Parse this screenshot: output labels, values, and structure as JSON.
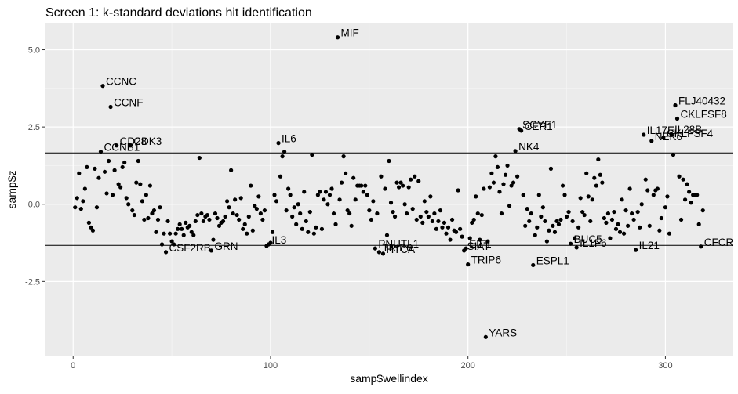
{
  "chart_data": {
    "type": "scatter",
    "title": "Screen 1: k-standard deviations hit identification",
    "xlabel": "samp$wellindex",
    "ylabel": "samp$z",
    "xlim": [
      -14,
      334
    ],
    "ylim": [
      -4.9,
      5.85
    ],
    "x_ticks": [
      0,
      100,
      200,
      300
    ],
    "y_ticks": [
      -2.5,
      0,
      2.5,
      5
    ],
    "x_tick_labels": [
      "0",
      "100",
      "200",
      "300"
    ],
    "y_tick_labels": [
      "-2.5",
      "0.0",
      "2.5",
      "5.0"
    ],
    "hlines": [
      1.66,
      -1.33
    ],
    "grid": true,
    "panel_background": "#EBEBEB",
    "grid_color": "#FFFFFF",
    "point_color": "#000000",
    "labeled_points": [
      {
        "label": "MIF",
        "x": 134,
        "y": 5.4
      },
      {
        "label": "CCNC",
        "x": 15,
        "y": 3.83
      },
      {
        "label": "CCNF",
        "x": 19,
        "y": 3.15
      },
      {
        "label": "CD28",
        "x": 22,
        "y": 1.9
      },
      {
        "label": "CDK3",
        "x": 29,
        "y": 1.9
      },
      {
        "label": "CCNB1",
        "x": 14,
        "y": 1.7
      },
      {
        "label": "IL6",
        "x": 104,
        "y": 1.98
      },
      {
        "label": "SCYE1",
        "x": 226,
        "y": 2.43
      },
      {
        "label": "CER1",
        "x": 227,
        "y": 2.38
      },
      {
        "label": "NK4",
        "x": 224,
        "y": 1.72
      },
      {
        "label": "FLJ40432",
        "x": 305,
        "y": 3.2
      },
      {
        "label": "CKLFSF8",
        "x": 306,
        "y": 2.77
      },
      {
        "label": "IL17E",
        "x": 289,
        "y": 2.25
      },
      {
        "label": "IL28B",
        "x": 303,
        "y": 2.27
      },
      {
        "label": "CKLFSF4",
        "x": 299,
        "y": 2.15
      },
      {
        "label": "NEK6",
        "x": 293,
        "y": 2.05
      },
      {
        "label": "CSF2RB",
        "x": 47,
        "y": -1.55
      },
      {
        "label": "GRN",
        "x": 70,
        "y": -1.5
      },
      {
        "label": "IL3",
        "x": 99,
        "y": -1.3
      },
      {
        "label": "PNUTL1",
        "x": 153,
        "y": -1.43
      },
      {
        "label": "TRIP6_1",
        "x": 155,
        "y": -1.55
      },
      {
        "label": "HTCA",
        "x": 157,
        "y": -1.6
      },
      {
        "label": "EIF1",
        "x": 199,
        "y": -1.43
      },
      {
        "label": "SIAT",
        "x": 198,
        "y": -1.5
      },
      {
        "label": "TRIP6",
        "x": 200,
        "y": -1.95
      },
      {
        "label": "ESPL1",
        "x": 233,
        "y": -1.97
      },
      {
        "label": "BUC5",
        "x": 252,
        "y": -1.28
      },
      {
        "label": "IL1F6",
        "x": 255,
        "y": -1.4
      },
      {
        "label": "IL21",
        "x": 285,
        "y": -1.48
      },
      {
        "label": "CFCR",
        "x": 318,
        "y": -1.37
      },
      {
        "label": "YARS",
        "x": 209,
        "y": -4.3
      }
    ],
    "point_labels": {
      "MIF": "MIF",
      "CCNC": "CCNC",
      "CCNF": "CCNF",
      "CD28": "CD28",
      "CDK3": "CDK3",
      "CCNB1": "CCNB1",
      "IL6": "IL6",
      "SCYE1": "SCYE1",
      "CER1": "CER1",
      "NK4": "NK4",
      "FLJ40432": "FLJ40432",
      "CKLFSF8": "CKLFSF8",
      "IL17E": "IL17E",
      "IL28B": "IL28B",
      "CKLFSF4": "CKLFSF4",
      "NEK6": "NEK6",
      "CSF2RB": "CSF2RB",
      "GRN": "GRN",
      "IL3": "IL3",
      "PNUTL1": "PNUTL1",
      "TRIP6_1": "TRIP6",
      "HTCA": "HTCA",
      "EIF1": "EIF1",
      "SIAT": "SIAT",
      "TRIP6": "TRIP6",
      "ESPL1": "ESPL1",
      "BUC5": "BUC5",
      "IL1F6": "IL1F6",
      "IL21": "IL21",
      "CFCR": "CFCR",
      "YARS": "YARS"
    },
    "points": [
      [
        1,
        -0.1
      ],
      [
        2,
        0.2
      ],
      [
        3,
        1.0
      ],
      [
        4,
        -0.15
      ],
      [
        5,
        0.1
      ],
      [
        6,
        0.5
      ],
      [
        7,
        1.2
      ],
      [
        8,
        -0.6
      ],
      [
        9,
        -0.75
      ],
      [
        10,
        -0.85
      ],
      [
        11,
        1.15
      ],
      [
        12,
        -0.1
      ],
      [
        13,
        0.85
      ],
      [
        16,
        1.05
      ],
      [
        17,
        0.35
      ],
      [
        18,
        1.4
      ],
      [
        20,
        0.3
      ],
      [
        21,
        1.1
      ],
      [
        23,
        0.65
      ],
      [
        24,
        0.55
      ],
      [
        25,
        1.2
      ],
      [
        26,
        1.35
      ],
      [
        27,
        0.2
      ],
      [
        28,
        0.0
      ],
      [
        30,
        -0.2
      ],
      [
        31,
        -0.35
      ],
      [
        32,
        0.7
      ],
      [
        33,
        1.4
      ],
      [
        34,
        0.65
      ],
      [
        35,
        0.1
      ],
      [
        36,
        -0.5
      ],
      [
        37,
        0.3
      ],
      [
        38,
        -0.45
      ],
      [
        39,
        0.6
      ],
      [
        40,
        -0.3
      ],
      [
        41,
        -0.2
      ],
      [
        42,
        -0.9
      ],
      [
        43,
        -0.5
      ],
      [
        44,
        -0.1
      ],
      [
        45,
        -1.3
      ],
      [
        46,
        -0.95
      ],
      [
        48,
        -0.55
      ],
      [
        49,
        -0.95
      ],
      [
        50,
        -1.2
      ],
      [
        51,
        -1.3
      ],
      [
        52,
        -0.95
      ],
      [
        53,
        -0.8
      ],
      [
        54,
        -0.65
      ],
      [
        55,
        -0.8
      ],
      [
        56,
        -1.0
      ],
      [
        57,
        -0.6
      ],
      [
        58,
        -0.75
      ],
      [
        59,
        -0.7
      ],
      [
        60,
        -0.9
      ],
      [
        61,
        -1.0
      ],
      [
        62,
        -0.55
      ],
      [
        63,
        -0.35
      ],
      [
        64,
        1.5
      ],
      [
        65,
        -0.3
      ],
      [
        66,
        -0.55
      ],
      [
        67,
        -0.4
      ],
      [
        68,
        -0.35
      ],
      [
        69,
        -0.5
      ],
      [
        71,
        -1.15
      ],
      [
        72,
        -0.3
      ],
      [
        73,
        -0.45
      ],
      [
        74,
        -0.7
      ],
      [
        75,
        -0.6
      ],
      [
        76,
        -0.55
      ],
      [
        77,
        -0.4
      ],
      [
        78,
        0.1
      ],
      [
        79,
        -0.1
      ],
      [
        80,
        1.1
      ],
      [
        81,
        -0.3
      ],
      [
        82,
        0.15
      ],
      [
        83,
        -0.35
      ],
      [
        84,
        -0.5
      ],
      [
        85,
        0.2
      ],
      [
        86,
        -0.8
      ],
      [
        87,
        -0.65
      ],
      [
        88,
        -0.95
      ],
      [
        89,
        -0.4
      ],
      [
        90,
        0.6
      ],
      [
        91,
        -0.85
      ],
      [
        92,
        -0.05
      ],
      [
        93,
        -0.15
      ],
      [
        94,
        0.25
      ],
      [
        95,
        -0.3
      ],
      [
        96,
        -0.5
      ],
      [
        97,
        -0.2
      ],
      [
        98,
        -1.35
      ],
      [
        100,
        -1.25
      ],
      [
        101,
        -0.9
      ],
      [
        102,
        0.3
      ],
      [
        103,
        0.1
      ],
      [
        105,
        0.9
      ],
      [
        106,
        1.55
      ],
      [
        107,
        1.7
      ],
      [
        108,
        -0.2
      ],
      [
        109,
        0.5
      ],
      [
        110,
        0.3
      ],
      [
        111,
        -0.4
      ],
      [
        112,
        -0.1
      ],
      [
        113,
        -0.65
      ],
      [
        114,
        0.0
      ],
      [
        115,
        -0.3
      ],
      [
        116,
        -0.8
      ],
      [
        117,
        0.4
      ],
      [
        118,
        -0.55
      ],
      [
        119,
        -0.9
      ],
      [
        120,
        -0.25
      ],
      [
        121,
        1.6
      ],
      [
        122,
        -0.95
      ],
      [
        123,
        -0.75
      ],
      [
        124,
        0.3
      ],
      [
        125,
        0.4
      ],
      [
        126,
        -0.8
      ],
      [
        127,
        0.15
      ],
      [
        128,
        0.4
      ],
      [
        129,
        0.0
      ],
      [
        130,
        0.3
      ],
      [
        131,
        0.5
      ],
      [
        132,
        -0.3
      ],
      [
        133,
        -0.65
      ],
      [
        135,
        0.15
      ],
      [
        136,
        0.7
      ],
      [
        137,
        1.55
      ],
      [
        138,
        1.0
      ],
      [
        139,
        -0.2
      ],
      [
        140,
        -0.3
      ],
      [
        141,
        -0.7
      ],
      [
        142,
        0.85
      ],
      [
        143,
        0.15
      ],
      [
        144,
        0.6
      ],
      [
        145,
        0.6
      ],
      [
        146,
        0.6
      ],
      [
        147,
        0.4
      ],
      [
        148,
        0.6
      ],
      [
        149,
        0.3
      ],
      [
        150,
        -0.2
      ],
      [
        151,
        -0.5
      ],
      [
        152,
        0.1
      ],
      [
        154,
        -0.3
      ],
      [
        156,
        0.9
      ],
      [
        158,
        0.5
      ],
      [
        159,
        -1.0
      ],
      [
        160,
        1.4
      ],
      [
        161,
        0.05
      ],
      [
        162,
        -0.25
      ],
      [
        163,
        -0.4
      ],
      [
        164,
        0.7
      ],
      [
        165,
        0.55
      ],
      [
        166,
        0.7
      ],
      [
        167,
        0.6
      ],
      [
        168,
        0.0
      ],
      [
        169,
        -0.3
      ],
      [
        170,
        0.55
      ],
      [
        171,
        0.8
      ],
      [
        172,
        -0.15
      ],
      [
        173,
        0.9
      ],
      [
        174,
        -0.5
      ],
      [
        175,
        0.75
      ],
      [
        176,
        -0.4
      ],
      [
        177,
        -0.6
      ],
      [
        178,
        0.1
      ],
      [
        179,
        -0.25
      ],
      [
        180,
        -0.4
      ],
      [
        181,
        0.25
      ],
      [
        182,
        -0.55
      ],
      [
        183,
        -0.3
      ],
      [
        184,
        -0.8
      ],
      [
        185,
        -0.55
      ],
      [
        186,
        -0.2
      ],
      [
        187,
        -0.75
      ],
      [
        188,
        -0.6
      ],
      [
        189,
        -0.95
      ],
      [
        190,
        -0.75
      ],
      [
        191,
        -1.15
      ],
      [
        192,
        -0.5
      ],
      [
        193,
        -0.85
      ],
      [
        194,
        -0.9
      ],
      [
        195,
        0.45
      ],
      [
        196,
        -0.8
      ],
      [
        197,
        -1.05
      ],
      [
        201,
        -1.1
      ],
      [
        202,
        -0.6
      ],
      [
        203,
        -0.5
      ],
      [
        204,
        0.25
      ],
      [
        205,
        -0.3
      ],
      [
        206,
        -1.15
      ],
      [
        207,
        -0.35
      ],
      [
        208,
        0.5
      ],
      [
        210,
        -1.2
      ],
      [
        211,
        0.55
      ],
      [
        212,
        1.0
      ],
      [
        213,
        0.7
      ],
      [
        214,
        1.55
      ],
      [
        215,
        1.2
      ],
      [
        216,
        0.4
      ],
      [
        217,
        -0.3
      ],
      [
        218,
        0.65
      ],
      [
        219,
        0.95
      ],
      [
        220,
        1.25
      ],
      [
        221,
        -0.05
      ],
      [
        222,
        0.6
      ],
      [
        223,
        0.7
      ],
      [
        225,
        0.9
      ],
      [
        228,
        0.3
      ],
      [
        229,
        -0.7
      ],
      [
        230,
        -0.15
      ],
      [
        231,
        -0.55
      ],
      [
        232,
        -0.3
      ],
      [
        234,
        -1.0
      ],
      [
        235,
        -0.75
      ],
      [
        236,
        0.3
      ],
      [
        237,
        -0.4
      ],
      [
        238,
        -0.1
      ],
      [
        239,
        -0.55
      ],
      [
        240,
        -1.2
      ],
      [
        241,
        -0.85
      ],
      [
        242,
        1.15
      ],
      [
        243,
        -0.7
      ],
      [
        244,
        -0.9
      ],
      [
        245,
        -0.55
      ],
      [
        246,
        -0.65
      ],
      [
        247,
        -0.5
      ],
      [
        248,
        0.6
      ],
      [
        249,
        0.3
      ],
      [
        250,
        -0.4
      ],
      [
        251,
        -0.25
      ],
      [
        253,
        -0.55
      ],
      [
        254,
        -1.1
      ],
      [
        256,
        -0.75
      ],
      [
        257,
        0.2
      ],
      [
        258,
        -0.25
      ],
      [
        259,
        -0.35
      ],
      [
        260,
        1.0
      ],
      [
        261,
        0.25
      ],
      [
        262,
        -0.55
      ],
      [
        263,
        0.15
      ],
      [
        264,
        0.85
      ],
      [
        265,
        0.6
      ],
      [
        266,
        1.45
      ],
      [
        267,
        0.95
      ],
      [
        268,
        0.7
      ],
      [
        269,
        -0.45
      ],
      [
        270,
        -0.6
      ],
      [
        271,
        -0.3
      ],
      [
        272,
        -1.1
      ],
      [
        273,
        -0.5
      ],
      [
        274,
        -0.25
      ],
      [
        275,
        -0.8
      ],
      [
        276,
        -0.65
      ],
      [
        277,
        -0.9
      ],
      [
        278,
        0.15
      ],
      [
        279,
        -0.95
      ],
      [
        280,
        -0.2
      ],
      [
        281,
        -0.7
      ],
      [
        282,
        0.5
      ],
      [
        283,
        -0.3
      ],
      [
        284,
        -0.5
      ],
      [
        286,
        -0.25
      ],
      [
        287,
        -0.75
      ],
      [
        288,
        0.0
      ],
      [
        290,
        0.8
      ],
      [
        291,
        0.45
      ],
      [
        292,
        -0.7
      ],
      [
        294,
        0.3
      ],
      [
        295,
        0.45
      ],
      [
        296,
        0.5
      ],
      [
        297,
        -0.85
      ],
      [
        298,
        -0.45
      ],
      [
        300,
        -0.1
      ],
      [
        301,
        0.25
      ],
      [
        302,
        -0.95
      ],
      [
        304,
        1.6
      ],
      [
        307,
        0.9
      ],
      [
        308,
        -0.5
      ],
      [
        309,
        0.8
      ],
      [
        310,
        0.15
      ],
      [
        311,
        0.65
      ],
      [
        312,
        0.4
      ],
      [
        313,
        0.05
      ],
      [
        314,
        0.3
      ],
      [
        315,
        0.3
      ],
      [
        316,
        0.3
      ],
      [
        317,
        -0.65
      ],
      [
        319,
        -0.2
      ]
    ]
  }
}
